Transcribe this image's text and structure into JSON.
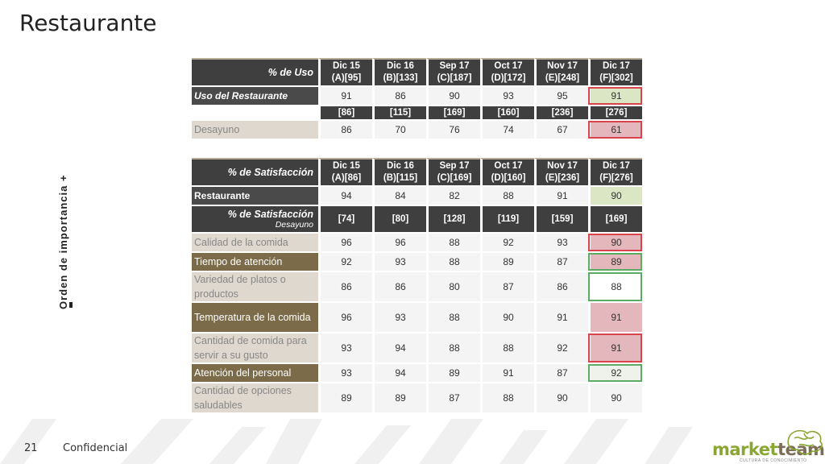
{
  "slide": {
    "title": "Restaurante",
    "page_number": "21",
    "footer": "Confidencial"
  },
  "axis_label": {
    "text": "Orden de importancia +",
    "minus": "-"
  },
  "logo": {
    "part1": "market",
    "part2": "team",
    "tagline": "CULTURA DE CONOCIMIENTO"
  },
  "uso_table": {
    "header_label": "% de Uso",
    "columns": [
      {
        "month": "Dic 15",
        "base": "(A)[95]"
      },
      {
        "month": "Dic 16",
        "base": "(B)[133]"
      },
      {
        "month": "Sep 17",
        "base": "(C)[187]"
      },
      {
        "month": "Oct 17",
        "base": "(D)[172]"
      },
      {
        "month": "Nov 17",
        "base": "(E)[248]"
      },
      {
        "month": "Dic 17",
        "base": "(F)[302]"
      }
    ],
    "main_row": {
      "label": "Uso del Restaurante",
      "values": [
        "91",
        "86",
        "90",
        "93",
        "95",
        "91"
      ]
    },
    "sub_bases": [
      "[86]",
      "[115]",
      "[169]",
      "[160]",
      "[236]",
      "[276]"
    ],
    "sub_row": {
      "label": "Desayuno",
      "values": [
        "86",
        "70",
        "76",
        "74",
        "67",
        "61"
      ]
    }
  },
  "satisf_table": {
    "header_label": "% de Satisfacción",
    "columns": [
      {
        "month": "Dic 15",
        "base": "(A)[86]"
      },
      {
        "month": "Dic 16",
        "base": "(B)[115]"
      },
      {
        "month": "Sep 17",
        "base": "(C)[169]"
      },
      {
        "month": "Oct 17",
        "base": "(D)[160]"
      },
      {
        "month": "Nov 17",
        "base": "(E)[236]"
      },
      {
        "month": "Dic 17",
        "base": "(F)[276]"
      }
    ],
    "main_row": {
      "label": "Restaurante",
      "values": [
        "94",
        "84",
        "82",
        "88",
        "91",
        "90"
      ]
    },
    "sub_header": {
      "label": "% de Satisfacción",
      "sublabel": "Desayuno",
      "bases": [
        "[74]",
        "[80]",
        "[128]",
        "[119]",
        "[159]",
        "[169]"
      ]
    },
    "rows": [
      {
        "label": "Calidad de la comida",
        "values": [
          "96",
          "96",
          "88",
          "92",
          "93",
          "90"
        ]
      },
      {
        "label": "Tiempo de atención",
        "values": [
          "92",
          "93",
          "88",
          "89",
          "87",
          "89"
        ]
      },
      {
        "label": "Variedad de platos o productos",
        "values": [
          "86",
          "86",
          "80",
          "87",
          "86",
          "88"
        ]
      },
      {
        "label": "Temperatura de la comida",
        "values": [
          "96",
          "93",
          "88",
          "90",
          "91",
          "91"
        ]
      },
      {
        "label": "Cantidad de comida para servir a su gusto",
        "values": [
          "93",
          "94",
          "88",
          "88",
          "92",
          "91"
        ]
      },
      {
        "label": "Atención del personal",
        "values": [
          "93",
          "94",
          "89",
          "91",
          "87",
          "92"
        ]
      },
      {
        "label": "Cantidad de opciones saludables",
        "values": [
          "89",
          "89",
          "87",
          "88",
          "90",
          "90"
        ]
      }
    ]
  },
  "colors": {
    "header_dark": "#3f3f3f",
    "olive": "#7b6b48",
    "beige": "#ded8ce",
    "highlight_green": "#dbe7c4",
    "highlight_pink": "#e4b7bc",
    "border_red": "#d9434b",
    "border_green": "#5bab63"
  }
}
